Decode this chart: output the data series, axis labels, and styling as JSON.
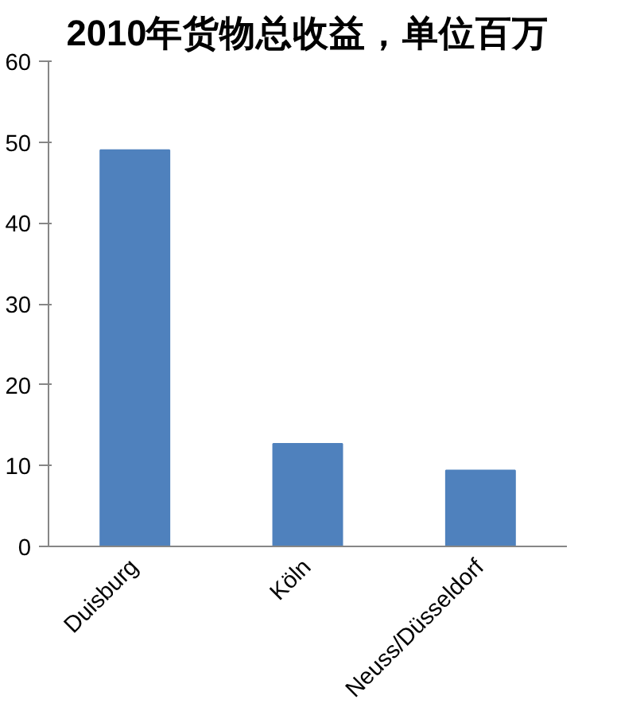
{
  "chart_data": {
    "type": "bar",
    "title": "2010年货物总收益，单位百万",
    "categories": [
      "Duisburg",
      "Köln",
      "Neuss/Düsseldorf"
    ],
    "values": [
      49,
      12.7,
      9.4
    ],
    "color": "#4f81bd",
    "ylim": [
      0,
      60
    ],
    "yticks": [
      0,
      10,
      20,
      30,
      40,
      50,
      60
    ],
    "grid": false
  }
}
